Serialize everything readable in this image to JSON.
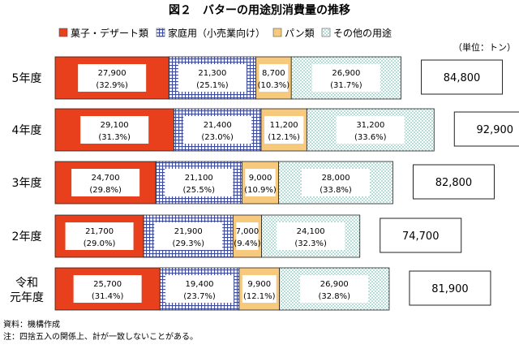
{
  "chart_data": {
    "type": "bar",
    "orientation": "horizontal",
    "stacked": true,
    "title": "図２　バターの用途別消費量の推移",
    "unit_label": "（単位：トン）",
    "categories": [
      "5年度",
      "4年度",
      "3年度",
      "2年度",
      "令和元年度"
    ],
    "series": [
      {
        "name": "菓子・デザート類",
        "color": "#e8401c",
        "pattern": "solid",
        "values": [
          27900,
          29100,
          24700,
          21700,
          25700
        ],
        "labels": [
          "27,900",
          "29,100",
          "24,700",
          "21,700",
          "25,700"
        ],
        "pct_labels": [
          "(32.9%)",
          "(31.3%)",
          "(29.8%)",
          "(29.0%)",
          "(31.4%)"
        ]
      },
      {
        "name": "家庭用（小売業向け）",
        "color": "#3d4b9a",
        "pattern": "grid",
        "values": [
          21300,
          21400,
          21100,
          21900,
          19400
        ],
        "labels": [
          "21,300",
          "21,400",
          "21,100",
          "21,900",
          "19,400"
        ],
        "pct_labels": [
          "(25.1%)",
          "(23.0%)",
          "(25.5%)",
          "(29.3%)",
          "(23.7%)"
        ]
      },
      {
        "name": "パン類",
        "color": "#f7c97c",
        "pattern": "solid",
        "values": [
          8700,
          11200,
          9000,
          7000,
          9900
        ],
        "labels": [
          "8,700",
          "11,200",
          "9,000",
          "7,000",
          "9,900"
        ],
        "pct_labels": [
          "(10.3%)",
          "(12.1%)",
          "(10.9%)",
          "(9.4%)",
          "(12.1%)"
        ]
      },
      {
        "name": "その他の用途",
        "color": "#4aa89a",
        "pattern": "dots",
        "values": [
          26900,
          31200,
          28000,
          24100,
          26900
        ],
        "labels": [
          "26,900",
          "31,200",
          "28,000",
          "24,100",
          "26,900"
        ],
        "pct_labels": [
          "(31.7%)",
          "(33.6%)",
          "(33.8%)",
          "(32.3%)",
          "(32.8%)"
        ]
      }
    ],
    "totals": [
      84800,
      92900,
      82800,
      74700,
      81900
    ],
    "total_labels": [
      "84,800",
      "92,900",
      "82,800",
      "74,700",
      "81,900"
    ],
    "legend_position": "top",
    "grid": false
  },
  "notes": {
    "source": "資料：機構作成",
    "footnote": "注：四捨五入の関係上、計が一致しないことがある。"
  }
}
